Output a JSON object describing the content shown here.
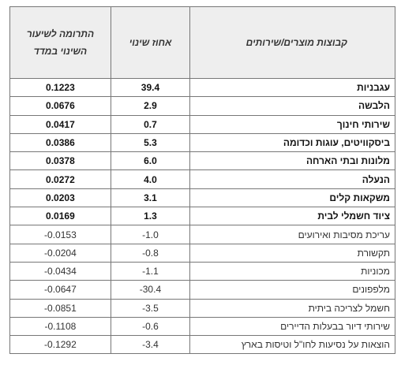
{
  "table": {
    "header": [
      "קבוצות מוצרים/שירותים",
      "אחוז שינוי",
      "התרומה לשיעור השינוי במדד"
    ],
    "rows": [
      [
        "עגבניות",
        "39.4",
        "0.1223"
      ],
      [
        "הלבשה",
        "2.9",
        "0.0676"
      ],
      [
        "שירותי חינוך",
        "0.7",
        "0.0417"
      ],
      [
        "ביסקוויטים, עוגות וכדומה",
        "5.3",
        "0.0386"
      ],
      [
        "מלונות ובתי הארחה",
        "6.0",
        "0.0378"
      ],
      [
        "הנעלה",
        "4.0",
        "0.0272"
      ],
      [
        "משקאות קלים",
        "3.1",
        "0.0203"
      ],
      [
        "ציוד חשמלי לבית",
        "1.3",
        "0.0169"
      ],
      [
        "עריכת מסיבות ואירועים",
        "-1.0",
        "-0.0153"
      ],
      [
        "תקשורת",
        "-0.8",
        "-0.0204"
      ],
      [
        "מכוניות",
        "-1.1",
        "-0.0434"
      ],
      [
        "מלפפונים",
        "-30.4",
        "-0.0647"
      ],
      [
        "חשמל לצריכה ביתית",
        "-3.5",
        "-0.0851"
      ],
      [
        "שירותי דיור בבעלות הדיירים",
        "-0.6",
        "-0.1108"
      ],
      [
        "הוצאות על נסיעות לחו\"ל וטיסות בארץ",
        "-3.4",
        "-0.1292"
      ]
    ]
  }
}
